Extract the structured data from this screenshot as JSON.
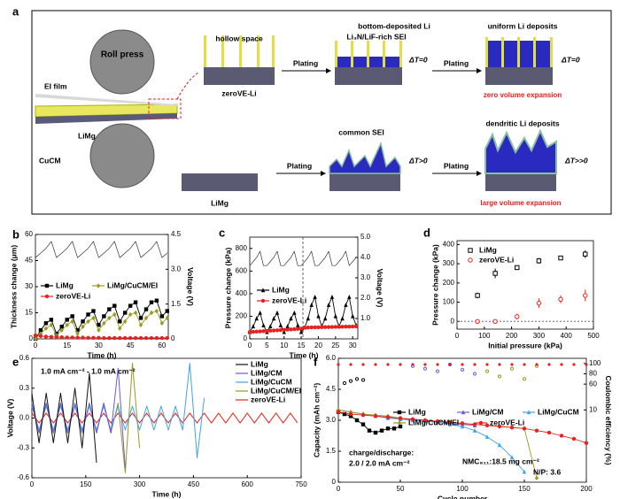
{
  "schematic": {
    "panel": "a",
    "roll_press": "Roll press",
    "ei_film": "EI film",
    "limg_film": "LiMg",
    "cucm": "CuCM",
    "zerove": "zeroVE-Li",
    "hollow": "hollow space",
    "sei_rich": "Li₃N/LiF-rich SEI",
    "bottom_li": "bottom-deposited Li",
    "uniform": "uniform Li deposits",
    "dt0_a": "ΔT=0",
    "dt0_b": "ΔT=0",
    "plating_1": "Plating",
    "plating_2": "Plating",
    "plating_3": "Plating",
    "plating_4": "Plating",
    "zero_exp": "zero volume expansion",
    "limg": "LiMg",
    "common_sei": "common SEI",
    "dt_gt": "ΔT>0",
    "dendritic": "dendritic Li deposits",
    "dt_ggt": "ΔT>>0",
    "large_exp": "large volume expansion"
  },
  "chart_data": [
    {
      "type": "line",
      "panel": "b",
      "xlabel": "Time (h)",
      "ylabel": "Thickness change (μm)",
      "y2label": "Voltage (V)",
      "x": [
        0,
        2.5,
        5,
        7.5,
        10,
        12.5,
        15,
        17.5,
        20,
        22.5,
        25,
        27.5,
        30,
        32.5,
        35,
        37.5,
        40,
        42.5,
        45,
        47.5,
        50,
        52.5,
        55,
        57.5,
        60,
        62.5
      ],
      "xlim": [
        0,
        63
      ],
      "xticks": [
        0,
        15,
        30,
        45,
        60
      ],
      "ylim": [
        0,
        60
      ],
      "yticks": [
        0,
        15,
        30,
        45,
        60
      ],
      "y2lim": [
        0,
        4.5
      ],
      "y2ticks": [
        0,
        1.5,
        {
          "value": 3,
          "label": "3.0"
        },
        4.5
      ],
      "series": [
        {
          "name": "LiMg",
          "color": "#000000",
          "marker": "square",
          "values": [
            0,
            5,
            9,
            11,
            3,
            7,
            11,
            13,
            5,
            10,
            14,
            16,
            8,
            13,
            17,
            19,
            10,
            15,
            19,
            21,
            12,
            17,
            21,
            22,
            13,
            16
          ]
        },
        {
          "name": "LiMg/CuCM/EI",
          "color": "#9a9a1e",
          "marker": "diamond",
          "values": [
            0,
            3,
            6,
            8,
            2,
            5,
            8,
            10,
            3,
            7,
            10,
            12,
            5,
            9,
            12,
            14,
            6,
            10,
            14,
            15,
            8,
            12,
            15,
            16,
            9,
            12
          ]
        },
        {
          "name": "zeroVE-Li",
          "color": "#e8201e",
          "marker": "circle",
          "values": [
            2,
            1.6,
            1.3,
            1.1,
            1,
            0.9,
            0.8,
            0.8,
            0.7,
            0.7,
            0.6,
            0.6,
            0.6,
            0.5,
            0.5,
            0.5,
            0.5,
            0.5,
            0.5,
            0.5,
            0.5,
            0.5,
            0.5,
            0.5,
            0.5,
            0.5
          ]
        }
      ],
      "voltage": {
        "color": "#333333",
        "axis": "y2",
        "values": [
          3.5,
          3.7,
          3.9,
          4.2,
          3.5,
          3.7,
          3.9,
          4.2,
          3.5,
          3.7,
          3.9,
          4.2,
          3.5,
          3.7,
          3.9,
          4.2,
          3.5,
          3.7,
          3.9,
          4.2,
          3.5,
          3.7,
          3.9,
          4.2,
          3.5,
          3.7
        ]
      }
    },
    {
      "type": "line",
      "panel": "c",
      "xlabel": "Time (h)",
      "ylabel": "Pressure change (kPa)",
      "y2label": "Voltage (V)",
      "x": [
        0,
        1,
        2,
        3,
        4,
        5,
        6,
        7,
        8,
        9,
        10,
        11,
        12,
        13,
        14,
        15,
        16,
        17,
        18,
        19,
        20,
        21,
        22,
        23,
        24,
        25,
        26,
        27,
        28,
        29,
        30,
        31
      ],
      "xlim": [
        0,
        31.5
      ],
      "xticks": [
        0,
        5,
        10,
        15,
        20,
        25,
        30
      ],
      "ylim": [
        0,
        900
      ],
      "yticks": [
        0,
        200,
        400,
        600,
        800
      ],
      "y2lim": [
        0,
        5
      ],
      "y2ticks": [
        {
          "value": 1,
          "label": "1.0"
        },
        {
          "value": 2,
          "label": "2.0"
        },
        {
          "value": 3,
          "label": "3.0"
        },
        {
          "value": 4,
          "label": "4.0"
        },
        {
          "value": 5,
          "label": "5.0"
        }
      ],
      "vline": 15.5,
      "series": [
        {
          "name": "LiMg",
          "color": "#000000",
          "marker": "triangle",
          "values": [
            60,
            110,
            180,
            230,
            120,
            60,
            110,
            180,
            230,
            120,
            60,
            110,
            180,
            230,
            120,
            60,
            100,
            180,
            300,
            370,
            200,
            110,
            180,
            300,
            370,
            200,
            110,
            180,
            300,
            370,
            200,
            120
          ]
        },
        {
          "name": "zeroVE-Li",
          "color": "#e8201e",
          "marker": "circle",
          "values": [
            60,
            62,
            64,
            66,
            68,
            70,
            72,
            74,
            76,
            78,
            80,
            82,
            84,
            86,
            88,
            90,
            100,
            100,
            101,
            102,
            102,
            103,
            104,
            104,
            105,
            106,
            106,
            107,
            108,
            108,
            109,
            110
          ]
        }
      ],
      "voltage": {
        "color": "#333333",
        "axis": "y2",
        "values": [
          3.6,
          3.8,
          4.0,
          4.3,
          3.6,
          3.6,
          3.8,
          4.0,
          4.3,
          3.6,
          3.6,
          3.8,
          4.0,
          4.3,
          3.6,
          3.6,
          3.8,
          4.0,
          4.3,
          3.6,
          3.6,
          3.8,
          4.0,
          4.3,
          3.6,
          3.6,
          3.8,
          4.0,
          4.3,
          3.6,
          3.8,
          4.0
        ]
      }
    },
    {
      "type": "scatter",
      "panel": "d",
      "xlabel": "Initial pressure (kPa)",
      "ylabel": "Pressure change (kPa)",
      "xlim": [
        0,
        500
      ],
      "xticks": [
        0,
        100,
        200,
        300,
        400,
        500
      ],
      "ylim": [
        -40,
        420
      ],
      "yticks": [
        0,
        100,
        200,
        300,
        400
      ],
      "hline": 0,
      "series": [
        {
          "name": "LiMg",
          "color": "#000000",
          "marker": "open-square",
          "x": [
            75,
            140,
            220,
            300,
            380,
            470
          ],
          "values": [
            135,
            250,
            280,
            315,
            330,
            350
          ],
          "errors": [
            15,
            25,
            10,
            15,
            8,
            20
          ]
        },
        {
          "name": "zeroVE-Li",
          "color": "#e8201e",
          "marker": "open-circle",
          "x": [
            75,
            140,
            220,
            300,
            380,
            470
          ],
          "values": [
            0,
            0,
            25,
            95,
            115,
            135
          ],
          "errors": [
            3,
            3,
            15,
            25,
            20,
            30
          ]
        }
      ]
    },
    {
      "type": "line",
      "panel": "e",
      "xlabel": "Time (h)",
      "ylabel": "Voltage (V)",
      "annotations": [
        "1.0 mA cm⁻² - 1.0 mA cm⁻²"
      ],
      "xlim": [
        0,
        750
      ],
      "xticks": [
        0,
        150,
        300,
        450,
        600,
        750
      ],
      "ylim": [
        -0.6,
        0.6
      ],
      "yticks": [
        -0.6,
        -0.3,
        {
          "value": 0,
          "label": "0.0"
        },
        0.3,
        0.6
      ],
      "series": [
        {
          "name": "LiMg",
          "color": "#111111",
          "x": [
            0,
            20,
            40,
            60,
            80,
            100,
            120,
            140,
            160,
            180
          ],
          "values": [
            0.25,
            -0.25,
            0.25,
            -0.25,
            0.25,
            -0.25,
            0.3,
            -0.3,
            0.45,
            -0.45
          ]
        },
        {
          "name": "LiMg/CM",
          "color": "#6a5ae0",
          "x": [
            0,
            20,
            40,
            60,
            80,
            100,
            120,
            140,
            160,
            180,
            200,
            220,
            240,
            260
          ],
          "values": [
            0.15,
            -0.15,
            0.15,
            -0.15,
            0.15,
            -0.15,
            0.15,
            -0.15,
            0.15,
            -0.15,
            0.15,
            -0.15,
            0.5,
            -0.5
          ]
        },
        {
          "name": "LiMg/CuCM",
          "color": "#3fa4e8",
          "x": [
            0,
            20,
            40,
            60,
            80,
            100,
            120,
            140,
            160,
            180,
            200,
            220,
            240,
            260,
            280,
            300,
            320,
            340,
            360,
            380,
            400,
            420,
            440,
            460,
            480
          ],
          "values": [
            0.12,
            -0.12,
            0.12,
            -0.12,
            0.12,
            -0.12,
            0.12,
            -0.12,
            0.12,
            -0.12,
            0.12,
            -0.12,
            0.12,
            -0.12,
            0.12,
            -0.12,
            0.12,
            -0.12,
            0.12,
            -0.12,
            0.12,
            -0.12,
            0.55,
            -0.4,
            0.2
          ]
        },
        {
          "name": "LiMg/CuCM/EI",
          "color": "#9a9a1e",
          "x": [
            0,
            20,
            40,
            60,
            80,
            100,
            120,
            140,
            160,
            180,
            200,
            220,
            240,
            260,
            280,
            300
          ],
          "values": [
            0.15,
            -0.15,
            0.15,
            -0.15,
            0.15,
            -0.15,
            0.15,
            -0.15,
            0.15,
            -0.15,
            0.15,
            -0.15,
            0.15,
            -0.55,
            0.55,
            -0.3
          ]
        },
        {
          "name": "zeroVE-Li",
          "color": "#e8201e",
          "x": [
            0,
            20,
            40,
            60,
            80,
            100,
            120,
            140,
            160,
            180,
            200,
            220,
            240,
            260,
            280,
            300,
            320,
            340,
            360,
            380,
            400,
            420,
            440,
            460,
            480,
            500,
            520,
            540,
            560,
            580,
            600,
            620,
            640,
            660,
            680,
            700,
            720,
            740
          ],
          "values": [
            0.05,
            -0.05,
            0.05,
            -0.05,
            0.05,
            -0.05,
            0.05,
            -0.05,
            0.05,
            -0.05,
            0.05,
            -0.05,
            0.05,
            -0.05,
            0.05,
            -0.05,
            0.05,
            -0.05,
            0.05,
            -0.05,
            0.05,
            -0.05,
            0.05,
            -0.05,
            0.05,
            -0.05,
            0.05,
            -0.05,
            0.05,
            -0.05,
            0.05,
            -0.05,
            0.05,
            -0.05,
            0.05,
            -0.05,
            0.05,
            -0.05
          ]
        }
      ]
    },
    {
      "type": "line",
      "panel": "f",
      "xlabel": "Cycle number",
      "ylabel": "Capacity (mAh cm⁻²)",
      "y2label": "Coulombic efficiency (%)",
      "annotations": [
        "charge/discharge:",
        "2.0 / 2.0 mA cm⁻²",
        "NMC₈₁₁:18.5 mg cm⁻²",
        "N/P: 3.6"
      ],
      "xlim": [
        0,
        200
      ],
      "xticks": [
        0,
        50,
        100,
        150,
        200
      ],
      "ylim": [
        0,
        6
      ],
      "yticks": [
        0,
        1.5,
        {
          "value": 3,
          "label": "3.0"
        },
        4.5,
        {
          "value": 6,
          "label": "6.0"
        }
      ],
      "y2lim": [
        -130,
        110
      ],
      "y2ticks": [
        10,
        60,
        80,
        100
      ],
      "series": [
        {
          "name": "LiMg",
          "color": "#000000",
          "marker": "square",
          "x": [
            0,
            5,
            10,
            15,
            20,
            25,
            30,
            35,
            40,
            45,
            50
          ],
          "values": [
            3.4,
            3.3,
            3.2,
            3.0,
            2.8,
            2.5,
            2.4,
            2.5,
            2.6,
            2.6,
            2.7
          ]
        },
        {
          "name": "LiMg/CM",
          "color": "#6a5ae0",
          "marker": "triangle",
          "x": [
            0,
            10,
            20,
            30,
            40,
            50,
            60,
            70,
            80,
            90,
            100,
            110
          ],
          "values": [
            3.5,
            3.4,
            3.3,
            3.2,
            3.15,
            3.1,
            3.0,
            2.95,
            2.9,
            2.85,
            2.8,
            2.75
          ]
        },
        {
          "name": "LiMg/CuCM",
          "color": "#3fa4e8",
          "marker": "triangle",
          "x": [
            0,
            10,
            20,
            30,
            40,
            50,
            60,
            70,
            80,
            90,
            100,
            110,
            120,
            130,
            140,
            150
          ],
          "values": [
            3.5,
            3.4,
            3.3,
            3.2,
            3.1,
            3.05,
            3.0,
            2.95,
            2.9,
            2.8,
            2.7,
            2.5,
            2.2,
            1.8,
            1.2,
            0.5
          ]
        },
        {
          "name": "LiMg/CuCM/EI",
          "color": "#9a9a1e",
          "marker": "diamond",
          "x": [
            0,
            10,
            20,
            30,
            40,
            50,
            60,
            70,
            80,
            90,
            100,
            110,
            120,
            130,
            140,
            150,
            160
          ],
          "values": [
            3.5,
            3.4,
            3.3,
            3.25,
            3.2,
            3.1,
            3.05,
            3.0,
            2.95,
            2.9,
            2.85,
            2.8,
            2.75,
            2.7,
            2.65,
            2.6,
            0.2
          ]
        },
        {
          "name": "zeroVE-Li",
          "color": "#e8201e",
          "marker": "circle",
          "x": [
            0,
            10,
            20,
            30,
            40,
            50,
            60,
            70,
            80,
            90,
            100,
            110,
            120,
            130,
            140,
            150,
            160,
            170,
            180,
            190,
            200
          ],
          "values": [
            3.4,
            3.3,
            3.25,
            3.2,
            3.15,
            3.1,
            3.05,
            3.0,
            2.95,
            2.9,
            2.85,
            2.8,
            2.75,
            2.7,
            2.65,
            2.6,
            2.5,
            2.4,
            2.25,
            2.1,
            1.9
          ]
        }
      ],
      "ce_series": [
        {
          "color": "#000000",
          "marker": "open-circle",
          "axis": "y2",
          "x": [
            5,
            10,
            15,
            20
          ],
          "values": [
            62,
            66,
            70,
            68
          ]
        },
        {
          "color": "#6a5ae0",
          "marker": "open-circle",
          "axis": "y2",
          "x": [
            60,
            70,
            80,
            90,
            100,
            110
          ],
          "values": [
            95,
            90,
            85,
            98,
            88,
            80
          ]
        },
        {
          "color": "#9a9a1e",
          "marker": "open-circle",
          "axis": "y2",
          "x": [
            120,
            130,
            140,
            150,
            160
          ],
          "values": [
            85,
            75,
            90,
            70,
            95
          ]
        },
        {
          "color": "#e8201e",
          "marker": "circle",
          "axis": "y2",
          "x": [
            0,
            10,
            20,
            30,
            40,
            50,
            60,
            70,
            80,
            90,
            100,
            110,
            120,
            130,
            140,
            150,
            160,
            170,
            180,
            190,
            200
          ],
          "values": [
            98,
            98,
            98,
            98,
            98,
            98,
            98,
            98,
            98,
            98,
            98,
            98,
            98,
            98,
            98,
            98,
            98,
            98,
            98,
            98,
            98
          ]
        }
      ]
    }
  ]
}
